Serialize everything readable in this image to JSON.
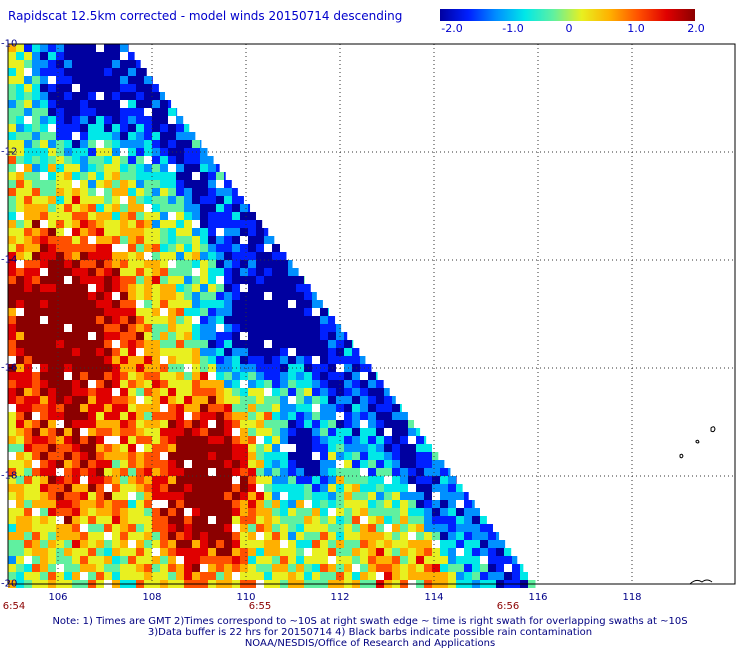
{
  "title": "Rapidscat 12.5km corrected - model winds 20150714 descending",
  "colorbar": {
    "ticks": [
      "-2.0",
      "-1.0",
      "0",
      "1.0",
      "2.0"
    ],
    "range": [
      -2.0,
      2.0
    ],
    "colors": [
      "#0000a0",
      "#0020ff",
      "#0090ff",
      "#00e8e8",
      "#60f0a0",
      "#e8f020",
      "#ffb000",
      "#ff5000",
      "#e00000",
      "#8b0000"
    ]
  },
  "map": {
    "lat_labels": [
      "-10",
      "-12",
      "-14",
      "-16",
      "-18",
      "-20"
    ],
    "lon_labels": [
      "106",
      "108",
      "110",
      "112",
      "114",
      "116",
      "118"
    ],
    "time_labels": [
      "6:54",
      "6:55",
      "6:56"
    ],
    "lat_range": [
      -20,
      -10
    ],
    "lon_range": [
      105,
      119.5
    ],
    "grid": "dotted"
  },
  "notes": [
    "Note: 1) Times are GMT 2)Times correspond to ~10S at right swath edge ~ time is right swath for overlapping swaths at ~10S",
    "3)Data buffer is 22 hrs for 20150714 4) Black barbs indicate possible rain contamination",
    "NOAA/NESDIS/Office of Research and Applications"
  ]
}
